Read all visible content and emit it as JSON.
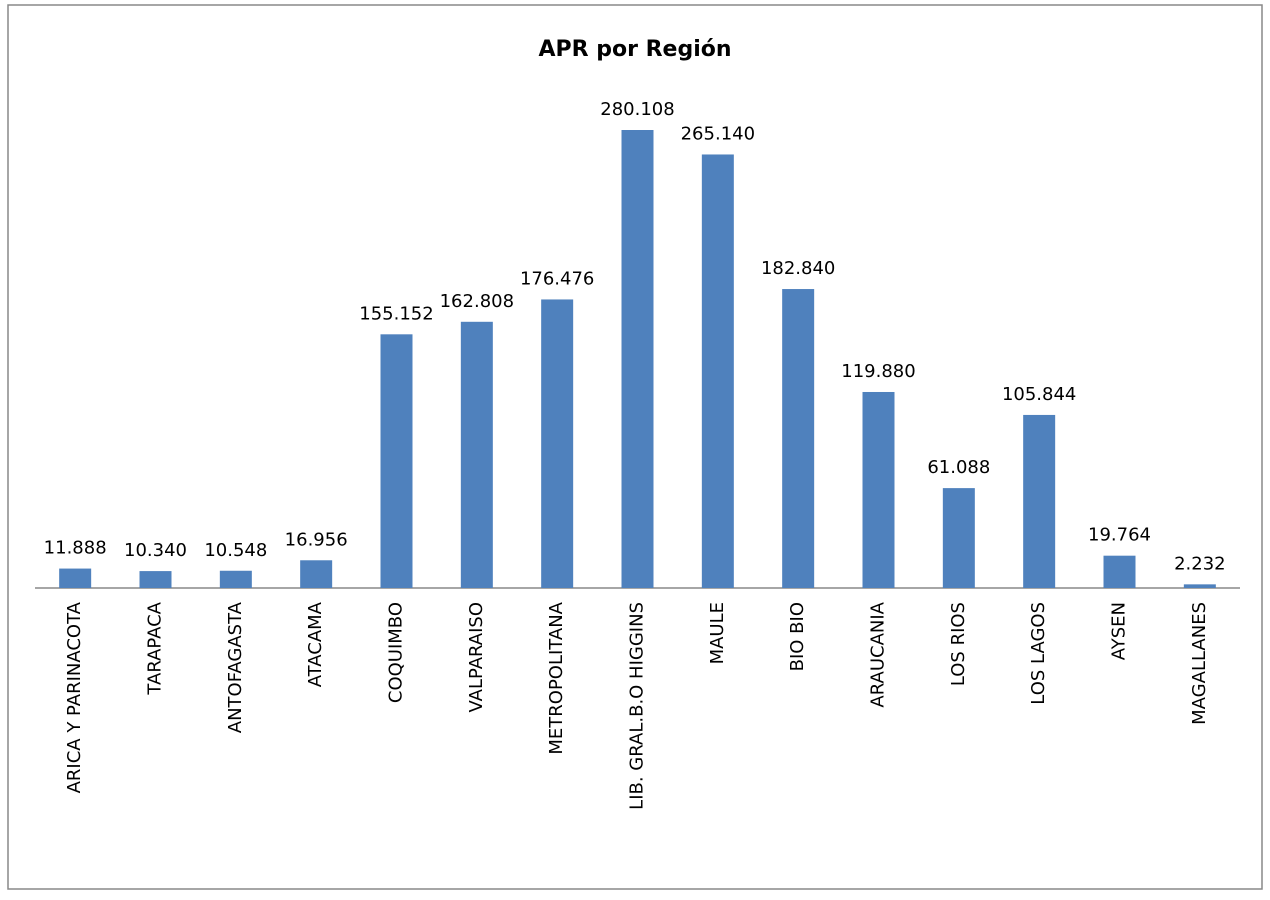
{
  "chart_data": {
    "type": "bar",
    "title": "APR por Región",
    "categories": [
      "ARICA Y PARINACOTA",
      "TARAPACA",
      "ANTOFAGASTA",
      "ATACAMA",
      "COQUIMBO",
      "VALPARAISO",
      "METROPOLITANA",
      "LIB. GRAL.B.O HIGGINS",
      "MAULE",
      "BIO BIO",
      "ARAUCANIA",
      "LOS RIOS",
      "LOS LAGOS",
      "AYSEN",
      "MAGALLANES"
    ],
    "values": [
      11888,
      10340,
      10548,
      16956,
      155152,
      162808,
      176476,
      280108,
      265140,
      182840,
      119880,
      61088,
      105844,
      19764,
      2232
    ],
    "value_labels": [
      "11.888",
      "10.340",
      "10.548",
      "16.956",
      "155.152",
      "162.808",
      "176.476",
      "280.108",
      "265.140",
      "182.840",
      "119.880",
      "61.088",
      "105.844",
      "19.764",
      "2.232"
    ],
    "color": "#4f81bd"
  }
}
